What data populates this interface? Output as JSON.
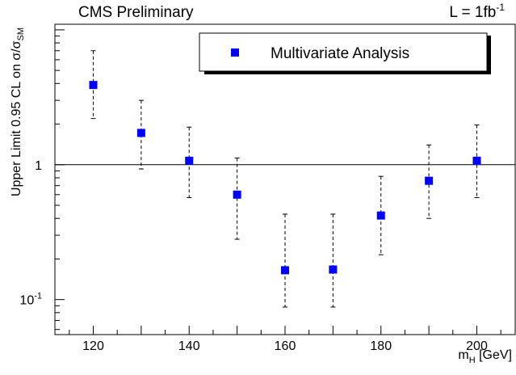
{
  "chart_data": {
    "type": "scatter",
    "header_left": "CMS Preliminary",
    "header_right": {
      "text": "L = 1fb",
      "sup": "-1"
    },
    "ylabel": {
      "text": "Upper Limit 0.95 CL on σ/σ",
      "sub": "SM"
    },
    "xlabel": {
      "text": "m",
      "sub": "H",
      "unit": " [GeV]"
    },
    "x_ticks": [
      "120",
      "140",
      "160",
      "180",
      "200"
    ],
    "y_ticks": [
      {
        "value": 0.1,
        "base": "10",
        "sup": "-1"
      },
      {
        "value": 1,
        "base": "1",
        "sup": ""
      }
    ],
    "xlim": [
      112,
      208
    ],
    "ylim": [
      0.055,
      11
    ],
    "log_y": true,
    "reference_line": 1,
    "legend_position": "top-right",
    "series": [
      {
        "name": "Multivariate Analysis",
        "color": "#0000ff",
        "marker": "square",
        "x": [
          120,
          130,
          140,
          150,
          160,
          170,
          180,
          190,
          200
        ],
        "y": [
          3.9,
          1.72,
          1.07,
          0.6,
          0.165,
          0.167,
          0.42,
          0.76,
          1.07
        ],
        "err_low": [
          2.2,
          0.93,
          0.57,
          0.28,
          0.088,
          0.088,
          0.215,
          0.4,
          0.57
        ],
        "err_high": [
          7.0,
          3.0,
          1.9,
          1.12,
          0.43,
          0.43,
          0.82,
          1.4,
          1.97
        ]
      }
    ]
  }
}
